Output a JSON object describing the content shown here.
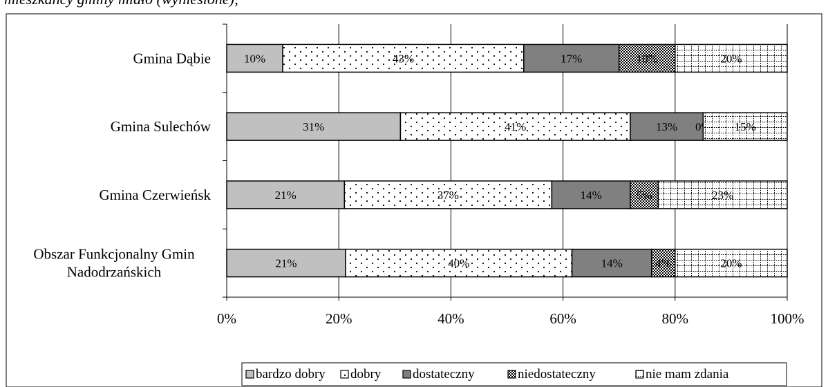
{
  "caption": "mieszkańcy gminy miało (wyniesione);",
  "chart_data": {
    "type": "bar",
    "orientation": "horizontal",
    "stacked": "percent",
    "categories": [
      "Gmina Dąbie",
      "Gmina Sulechów",
      "Gmina Czerwieńsk",
      "Obszar Funkcjonalny Gmin Nadodrzańskich"
    ],
    "series": [
      {
        "name": "bardzo dobry",
        "values": [
          10,
          31,
          21,
          21.2
        ],
        "labels": [
          "10%",
          "31%",
          "21%",
          "21%"
        ],
        "color": "#c0c0c0",
        "pattern": "solid"
      },
      {
        "name": "dobry",
        "values": [
          43,
          41,
          37,
          40.4
        ],
        "labels": [
          "43%",
          "41%",
          "37%",
          "40%"
        ],
        "color": "#ffffff",
        "pattern": "dots"
      },
      {
        "name": "dostateczny",
        "values": [
          17,
          13,
          14,
          14.2
        ],
        "labels": [
          "17%",
          "13%",
          "14%",
          "14%"
        ],
        "color": "#808080",
        "pattern": "solid"
      },
      {
        "name": "niedostateczny",
        "values": [
          10,
          0,
          5,
          4.2
        ],
        "labels": [
          "10%",
          "0%",
          "5%",
          "4%"
        ],
        "color": "#000000",
        "pattern": "checker"
      },
      {
        "name": "nie mam zdania",
        "values": [
          20,
          15,
          23,
          20
        ],
        "labels": [
          "20%",
          "15%",
          "23%",
          "20%"
        ],
        "color": "#ffffff",
        "pattern": "grid"
      }
    ],
    "xlim": [
      0,
      100
    ],
    "x_ticks": [
      "0%",
      "20%",
      "40%",
      "60%",
      "80%",
      "100%"
    ],
    "grid": true,
    "legend_position": "bottom"
  }
}
